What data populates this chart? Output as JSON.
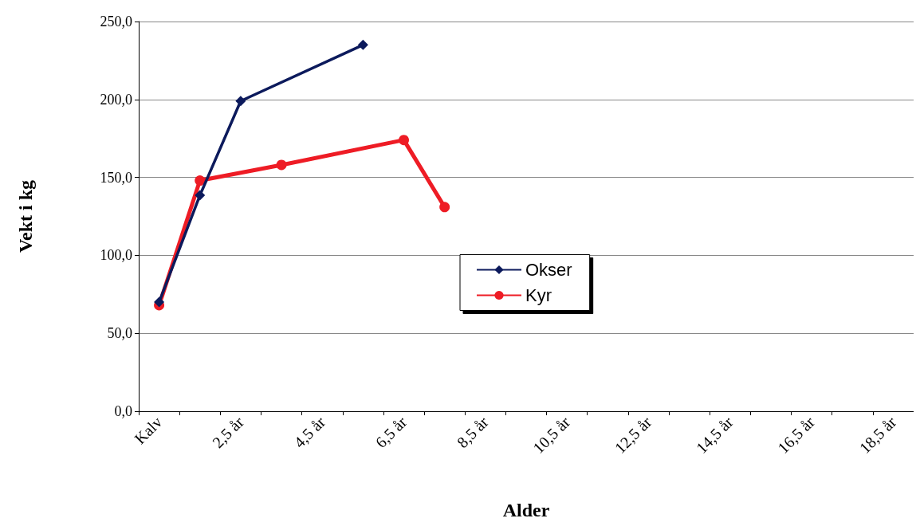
{
  "chart_data": {
    "type": "line",
    "xlabel": "Alder",
    "ylabel": "Vekt i kg",
    "categories": [
      "Kalv",
      null,
      "2,5 år",
      null,
      "4,5 år",
      null,
      "6,5 år",
      null,
      "8,5 år",
      null,
      "10,5 år",
      null,
      "12,5 år",
      null,
      "14,5 år",
      null,
      "16,5 år",
      null,
      "18,5 år"
    ],
    "series": [
      {
        "name": "Okser",
        "color": "#0c1a5c",
        "marker": "diamond",
        "values": [
          70,
          138.5,
          199,
          null,
          null,
          235,
          null,
          null,
          null,
          null,
          null,
          null,
          null,
          null,
          null,
          null,
          null,
          null,
          null
        ]
      },
      {
        "name": "Kyr",
        "color": "#ee1c25",
        "marker": "circle",
        "values": [
          68,
          148,
          null,
          158,
          null,
          null,
          174,
          131,
          null,
          null,
          null,
          null,
          null,
          null,
          null,
          null,
          null,
          null,
          null
        ]
      }
    ],
    "ylim": [
      0,
      250
    ],
    "yticks": [
      {
        "value": 0,
        "label": "0,0"
      },
      {
        "value": 50,
        "label": "50,0"
      },
      {
        "value": 100,
        "label": "100,0"
      },
      {
        "value": 150,
        "label": "150,0"
      },
      {
        "value": 200,
        "label": "200,0"
      },
      {
        "value": 250,
        "label": "250,0"
      }
    ],
    "grid": "y",
    "legend": "center",
    "line_style": "solid"
  }
}
